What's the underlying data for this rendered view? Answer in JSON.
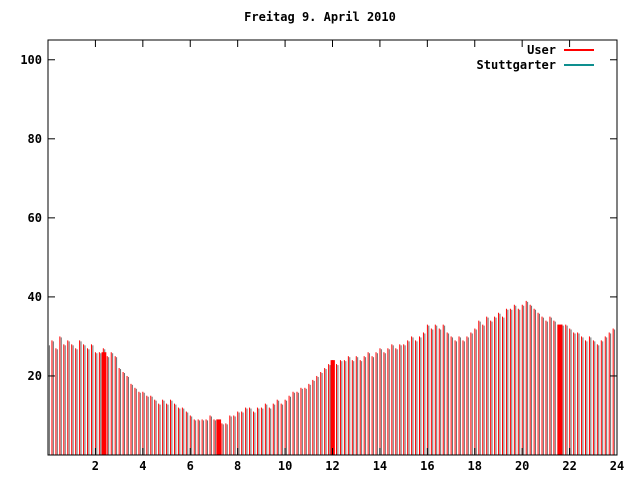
{
  "title": "Freitag 9. April 2010",
  "legend": {
    "entries": [
      {
        "label": "User",
        "color": "#ff0000"
      },
      {
        "label": "Stuttgarter",
        "color": "#0e8f8f"
      }
    ]
  },
  "chart_data": {
    "type": "bar",
    "subtype": "impulses",
    "title": "Freitag 9. April 2010",
    "xlabel": "",
    "ylabel": "",
    "xlim": [
      0,
      24
    ],
    "ylim": [
      0,
      105
    ],
    "x_ticks": [
      2,
      4,
      6,
      8,
      10,
      12,
      14,
      16,
      18,
      20,
      22,
      24
    ],
    "y_ticks": [
      20,
      40,
      60,
      80,
      100
    ],
    "grid": false,
    "legend_position": "top-right-inside",
    "x_start": 0,
    "x_step_hours": 0.1667,
    "series": [
      {
        "name": "User",
        "color": "#ff0000",
        "style": "impulses",
        "values": [
          28,
          29,
          27,
          30,
          28,
          29,
          28,
          27,
          29,
          28,
          27,
          28,
          26,
          26,
          27,
          25,
          26,
          25,
          22,
          21,
          20,
          18,
          17,
          16,
          16,
          15,
          15,
          14,
          13,
          14,
          13,
          14,
          13,
          12,
          12,
          11,
          10,
          9,
          9,
          9,
          9,
          10,
          9,
          8,
          8,
          8,
          10,
          10,
          11,
          11,
          12,
          12,
          11,
          12,
          12,
          13,
          12,
          13,
          14,
          13,
          14,
          15,
          16,
          16,
          17,
          17,
          18,
          19,
          20,
          21,
          22,
          23,
          24,
          23,
          24,
          24,
          25,
          24,
          25,
          24,
          25,
          26,
          25,
          26,
          27,
          26,
          27,
          28,
          27,
          28,
          28,
          29,
          30,
          29,
          30,
          31,
          33,
          32,
          33,
          32,
          33,
          31,
          30,
          29,
          30,
          29,
          30,
          31,
          32,
          34,
          33,
          35,
          34,
          35,
          36,
          35,
          37,
          37,
          38,
          37,
          38,
          39,
          38,
          37,
          36,
          35,
          34,
          35,
          34,
          33,
          33,
          33,
          32,
          31,
          31,
          30,
          29,
          30,
          29,
          28,
          29,
          30,
          31,
          32
        ]
      },
      {
        "name": "Stuttgarter",
        "color": "#0e8f8f",
        "style": "line",
        "values": []
      }
    ],
    "solid_segments": [
      {
        "x0": 2.26,
        "x1": 2.46,
        "value": 26
      },
      {
        "x0": 7.1,
        "x1": 7.3,
        "value": 9
      },
      {
        "x0": 11.92,
        "x1": 12.1,
        "value": 24
      },
      {
        "x0": 21.5,
        "x1": 21.7,
        "value": 33
      }
    ],
    "bar_shadow_color": "#6e6e6e",
    "axis_color": "#000000"
  }
}
